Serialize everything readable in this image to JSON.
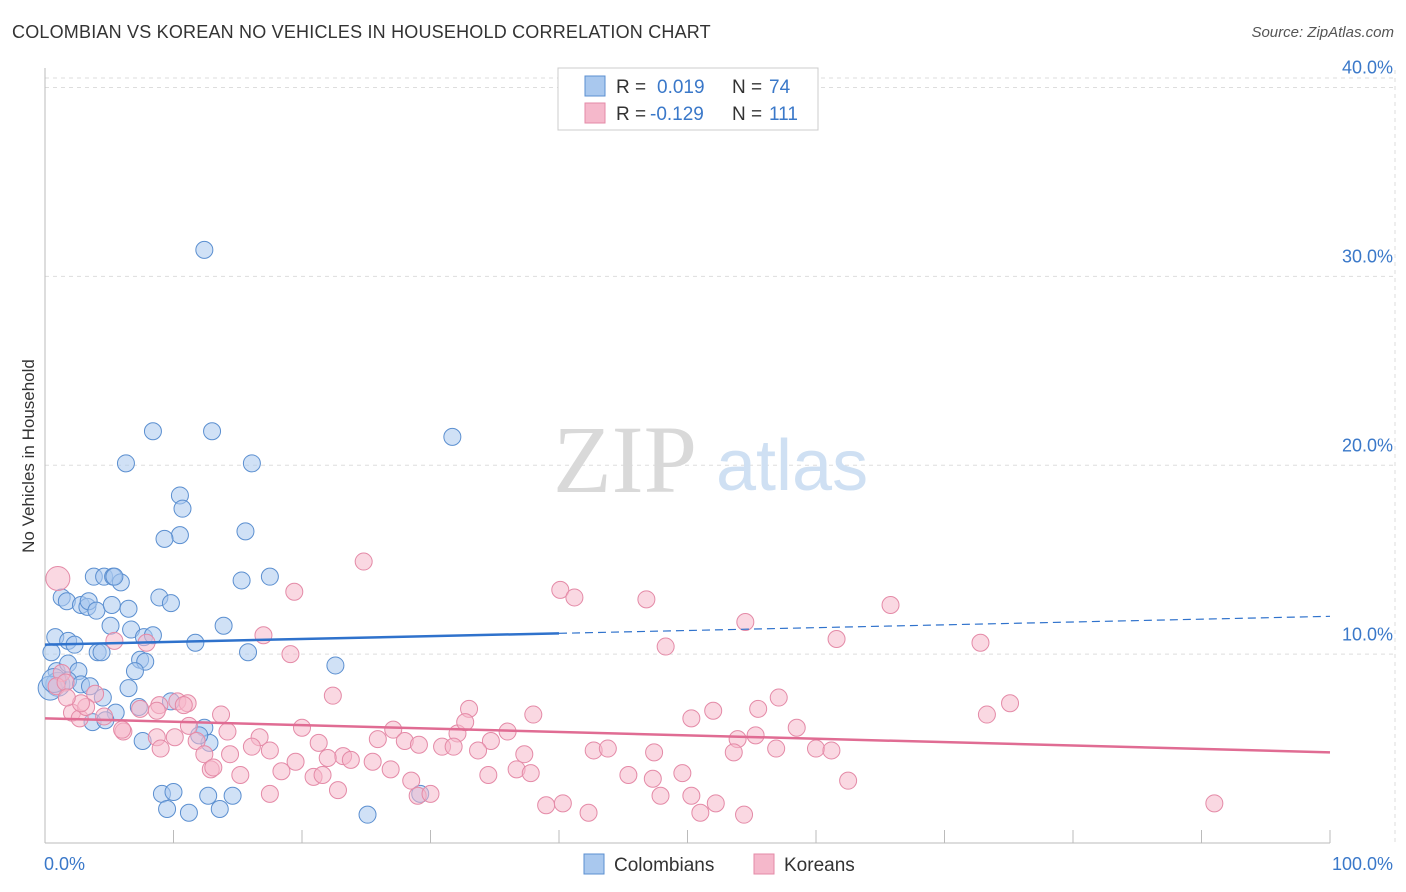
{
  "title": "COLOMBIAN VS KOREAN NO VEHICLES IN HOUSEHOLD CORRELATION CHART",
  "source": "Source: ZipAtlas.com",
  "watermark": {
    "zip": "ZIP",
    "atlas": "atlas"
  },
  "colors": {
    "colombian_fill": "#a9c8ee",
    "colombian_stroke": "#5b8fd0",
    "colombian_line": "#2f72cc",
    "korean_fill": "#f5b8cb",
    "korean_stroke": "#e48aa7",
    "korean_line": "#e06c93",
    "grid": "#dddddd",
    "axis_text": "#3a78c9"
  },
  "legend": {
    "rows": [
      {
        "r_label": "R =",
        "r_value": "0.019",
        "n_label": "N =",
        "n_value": "74"
      },
      {
        "r_label": "R =",
        "r_value": "-0.129",
        "n_label": "N =",
        "n_value": "111"
      }
    ]
  },
  "bottom_legend": [
    "Colombians",
    "Koreans"
  ],
  "chart_data": {
    "type": "scatter",
    "title": "COLOMBIAN VS KOREAN NO VEHICLES IN HOUSEHOLD CORRELATION CHART",
    "xlabel": "",
    "ylabel": "No Vehicles in Household",
    "xlim": [
      0,
      100
    ],
    "ylim": [
      0,
      40.5
    ],
    "x_tick_labels": [
      "0.0%",
      "100.0%"
    ],
    "y_ticks": [
      10,
      20,
      30,
      40
    ],
    "y_tick_labels": [
      "10.0%",
      "20.0%",
      "30.0%",
      "40.0%"
    ],
    "series": [
      {
        "name": "Colombians",
        "r": 0.019,
        "n": 74,
        "trend": {
          "x": [
            0,
            40
          ],
          "y": [
            10.5,
            11.1
          ],
          "dashed_to": [
            100,
            12.0
          ]
        },
        "points": [
          [
            12.4,
            31.4
          ],
          [
            8.4,
            21.8
          ],
          [
            13.0,
            21.8
          ],
          [
            31.7,
            21.5
          ],
          [
            6.3,
            20.1
          ],
          [
            16.1,
            20.1
          ],
          [
            10.5,
            18.4
          ],
          [
            10.7,
            17.7
          ],
          [
            10.5,
            16.3
          ],
          [
            9.3,
            16.1
          ],
          [
            15.6,
            16.5
          ],
          [
            3.8,
            14.1
          ],
          [
            4.6,
            14.1
          ],
          [
            5.3,
            14.1
          ],
          [
            5.9,
            13.8
          ],
          [
            15.3,
            13.9
          ],
          [
            17.5,
            14.1
          ],
          [
            1.3,
            13.0
          ],
          [
            1.7,
            12.8
          ],
          [
            2.8,
            12.6
          ],
          [
            3.3,
            12.5
          ],
          [
            3.4,
            12.8
          ],
          [
            4.0,
            12.3
          ],
          [
            5.2,
            12.6
          ],
          [
            6.5,
            12.4
          ],
          [
            8.9,
            13.0
          ],
          [
            9.8,
            12.7
          ],
          [
            13.9,
            11.5
          ],
          [
            0.8,
            10.9
          ],
          [
            1.8,
            10.7
          ],
          [
            2.3,
            10.5
          ],
          [
            4.1,
            10.1
          ],
          [
            5.1,
            11.5
          ],
          [
            6.7,
            11.3
          ],
          [
            7.7,
            10.9
          ],
          [
            8.4,
            11.0
          ],
          [
            11.7,
            10.6
          ],
          [
            0.5,
            10.1
          ],
          [
            0.9,
            9.1
          ],
          [
            1.8,
            9.5
          ],
          [
            2.6,
            9.1
          ],
          [
            4.4,
            10.1
          ],
          [
            7.4,
            9.7
          ],
          [
            7.8,
            9.6
          ],
          [
            15.8,
            10.1
          ],
          [
            22.6,
            9.4
          ],
          [
            1.0,
            8.4
          ],
          [
            1.8,
            8.6
          ],
          [
            2.8,
            8.4
          ],
          [
            3.5,
            8.3
          ],
          [
            4.5,
            7.7
          ],
          [
            6.5,
            8.2
          ],
          [
            5.5,
            6.9
          ],
          [
            7.0,
            9.1
          ],
          [
            0.4,
            8.2
          ],
          [
            0.7,
            8.6
          ],
          [
            3.7,
            6.4
          ],
          [
            4.7,
            6.5
          ],
          [
            7.3,
            7.2
          ],
          [
            9.8,
            7.5
          ],
          [
            12.4,
            6.1
          ],
          [
            7.6,
            5.4
          ],
          [
            12.8,
            5.3
          ],
          [
            9.1,
            2.6
          ],
          [
            10.0,
            2.7
          ],
          [
            12.7,
            2.5
          ],
          [
            14.6,
            2.5
          ],
          [
            9.5,
            1.8
          ],
          [
            11.2,
            1.6
          ],
          [
            13.6,
            1.8
          ],
          [
            25.1,
            1.5
          ],
          [
            29.2,
            2.6
          ],
          [
            12.0,
            5.7
          ],
          [
            5.4,
            14.1
          ]
        ]
      },
      {
        "name": "Koreans",
        "r": -0.129,
        "n": 111,
        "trend": {
          "x": [
            0,
            100
          ],
          "y": [
            6.6,
            4.8
          ]
        },
        "points": [
          [
            1.0,
            14.0
          ],
          [
            24.8,
            14.9
          ],
          [
            19.4,
            13.3
          ],
          [
            40.1,
            13.4
          ],
          [
            41.2,
            13.0
          ],
          [
            46.8,
            12.9
          ],
          [
            65.8,
            12.6
          ],
          [
            54.5,
            11.7
          ],
          [
            17.0,
            11.0
          ],
          [
            61.6,
            10.8
          ],
          [
            72.8,
            10.6
          ],
          [
            48.3,
            10.4
          ],
          [
            19.1,
            10.0
          ],
          [
            7.9,
            10.6
          ],
          [
            5.4,
            10.7
          ],
          [
            1.3,
            9.0
          ],
          [
            0.9,
            8.3
          ],
          [
            1.6,
            8.5
          ],
          [
            3.9,
            7.9
          ],
          [
            7.4,
            7.1
          ],
          [
            8.9,
            7.3
          ],
          [
            10.3,
            7.5
          ],
          [
            11.1,
            7.4
          ],
          [
            22.4,
            7.8
          ],
          [
            33.0,
            7.1
          ],
          [
            38.0,
            6.8
          ],
          [
            55.5,
            7.1
          ],
          [
            57.1,
            7.7
          ],
          [
            75.1,
            7.4
          ],
          [
            73.3,
            6.8
          ],
          [
            2.1,
            6.9
          ],
          [
            2.7,
            6.6
          ],
          [
            4.6,
            6.7
          ],
          [
            6.1,
            5.9
          ],
          [
            8.7,
            5.6
          ],
          [
            10.1,
            5.6
          ],
          [
            11.2,
            6.2
          ],
          [
            13.7,
            6.8
          ],
          [
            14.2,
            5.9
          ],
          [
            16.7,
            5.6
          ],
          [
            20.0,
            6.1
          ],
          [
            21.3,
            5.3
          ],
          [
            25.9,
            5.5
          ],
          [
            27.1,
            6.0
          ],
          [
            28.0,
            5.4
          ],
          [
            32.1,
            5.8
          ],
          [
            32.7,
            6.4
          ],
          [
            34.7,
            5.4
          ],
          [
            36.0,
            5.9
          ],
          [
            50.3,
            6.6
          ],
          [
            52.0,
            7.0
          ],
          [
            53.9,
            5.5
          ],
          [
            58.5,
            6.1
          ],
          [
            3.2,
            7.2
          ],
          [
            6.0,
            6.0
          ],
          [
            9.0,
            5.0
          ],
          [
            11.8,
            5.4
          ],
          [
            12.4,
            4.7
          ],
          [
            14.4,
            4.7
          ],
          [
            16.1,
            5.1
          ],
          [
            17.5,
            4.9
          ],
          [
            19.5,
            4.3
          ],
          [
            23.2,
            4.6
          ],
          [
            23.8,
            4.4
          ],
          [
            25.5,
            4.3
          ],
          [
            29.1,
            5.2
          ],
          [
            30.9,
            5.1
          ],
          [
            31.8,
            5.1
          ],
          [
            33.7,
            4.9
          ],
          [
            37.3,
            4.7
          ],
          [
            42.7,
            4.9
          ],
          [
            43.8,
            5.0
          ],
          [
            47.4,
            4.8
          ],
          [
            53.6,
            4.8
          ],
          [
            56.9,
            5.0
          ],
          [
            60.0,
            5.0
          ],
          [
            61.2,
            4.9
          ],
          [
            12.9,
            3.9
          ],
          [
            15.2,
            3.6
          ],
          [
            18.4,
            3.8
          ],
          [
            20.9,
            3.5
          ],
          [
            21.6,
            3.6
          ],
          [
            26.9,
            3.9
          ],
          [
            28.5,
            3.3
          ],
          [
            34.5,
            3.6
          ],
          [
            36.7,
            3.9
          ],
          [
            37.8,
            3.7
          ],
          [
            45.4,
            3.6
          ],
          [
            47.3,
            3.4
          ],
          [
            49.6,
            3.7
          ],
          [
            62.5,
            3.3
          ],
          [
            17.5,
            2.6
          ],
          [
            22.8,
            2.8
          ],
          [
            29.0,
            2.5
          ],
          [
            30.0,
            2.6
          ],
          [
            39.0,
            2.0
          ],
          [
            40.3,
            2.1
          ],
          [
            47.9,
            2.5
          ],
          [
            50.3,
            2.5
          ],
          [
            52.2,
            2.1
          ],
          [
            51.0,
            1.6
          ],
          [
            42.3,
            1.6
          ],
          [
            54.4,
            1.5
          ],
          [
            91.0,
            2.1
          ],
          [
            2.8,
            7.4
          ],
          [
            8.7,
            7.0
          ],
          [
            10.8,
            7.3
          ],
          [
            1.7,
            7.7
          ],
          [
            22.0,
            4.5
          ],
          [
            13.1,
            4.0
          ],
          [
            55.3,
            5.7
          ]
        ]
      }
    ]
  }
}
